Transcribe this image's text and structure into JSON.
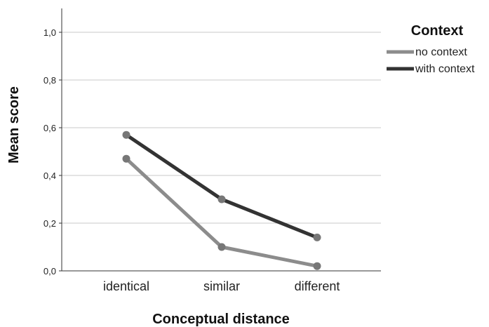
{
  "chart_data": {
    "type": "line",
    "categories": [
      "identical",
      "similar",
      "different"
    ],
    "series": [
      {
        "name": "no context",
        "values": [
          0.47,
          0.1,
          0.02
        ],
        "color": "#8c8c8c"
      },
      {
        "name": "with context",
        "values": [
          0.57,
          0.3,
          0.14
        ],
        "color": "#333333"
      }
    ],
    "xlabel": "Conceptual distance",
    "ylabel": "Mean score",
    "ylim": [
      0,
      1.1
    ],
    "yticks": [
      "0,0",
      "0,2",
      "0,4",
      "0,6",
      "0,8",
      "1,0"
    ],
    "grid": true,
    "legend": {
      "title": "Context",
      "placement": "top-right"
    }
  }
}
